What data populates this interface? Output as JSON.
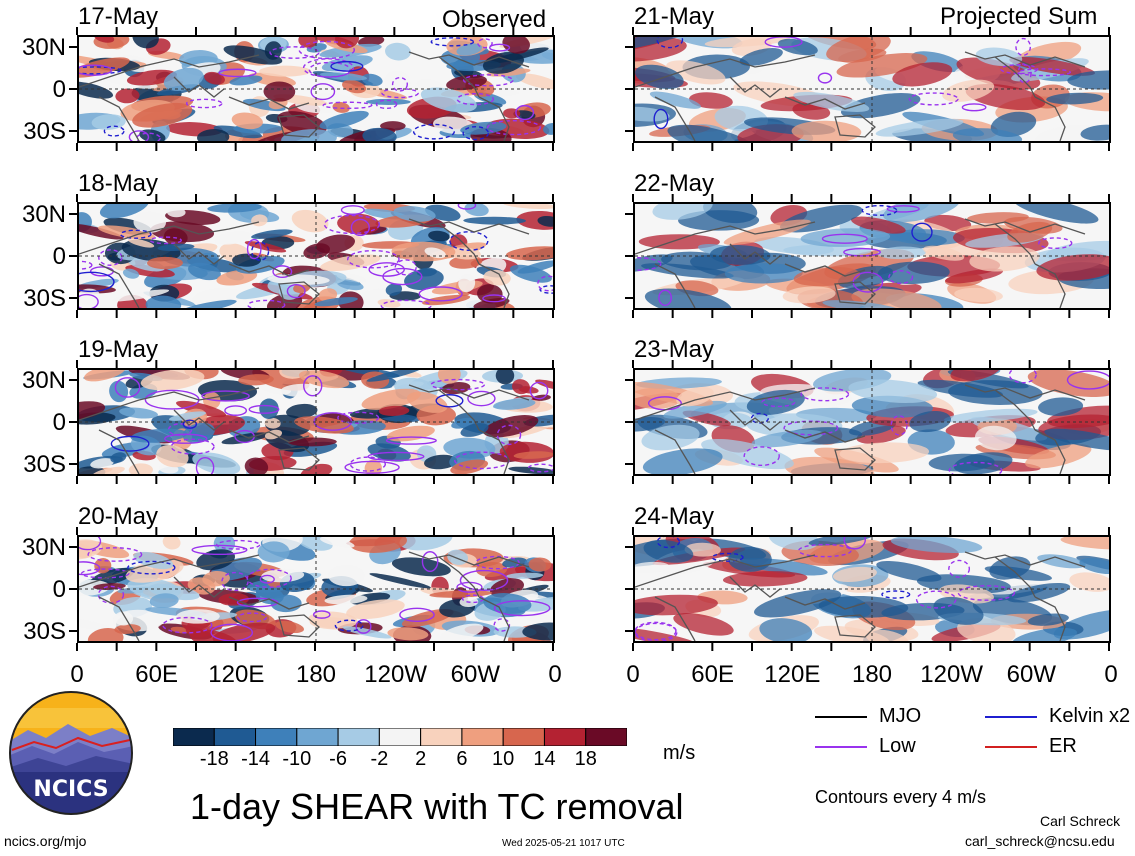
{
  "headers": {
    "left": "Observed",
    "right": "Projected Sum"
  },
  "left_panels": [
    "17-May",
    "18-May",
    "19-May",
    "20-May"
  ],
  "right_panels": [
    "21-May",
    "22-May",
    "23-May",
    "24-May"
  ],
  "lat_labels": [
    "30N",
    "0",
    "30S"
  ],
  "lon_labels": [
    "0",
    "60E",
    "120E",
    "180",
    "120W",
    "60W",
    "0"
  ],
  "colorbar": {
    "labels": [
      "-18",
      "-14",
      "-10",
      "-6",
      "-2",
      "2",
      "6",
      "10",
      "14",
      "18"
    ],
    "units": "m/s",
    "colors": [
      "#0b2a4e",
      "#1f5a93",
      "#3e80ba",
      "#6fa6d2",
      "#a6cbe5",
      "#f4f4f4",
      "#f8d2bd",
      "#ef9f7f",
      "#d7664e",
      "#b42232",
      "#6a0a26"
    ]
  },
  "legend": [
    {
      "label": "MJO",
      "color": "#000000"
    },
    {
      "label": "Kelvin x2",
      "color": "#1f1fd0"
    },
    {
      "label": "Low",
      "color": "#9933ee"
    },
    {
      "label": "ER",
      "color": "#d22020"
    }
  ],
  "contour_note": "Contours every 4 m/s",
  "title": "1-day SHEAR with TC removal",
  "logo_text": "NCICS",
  "url": "ncics.org/mjo",
  "timestamp": "Wed 2025-05-21 1017 UTC",
  "author": "Carl Schreck",
  "email": "carl_schreck@ncsu.edu"
}
